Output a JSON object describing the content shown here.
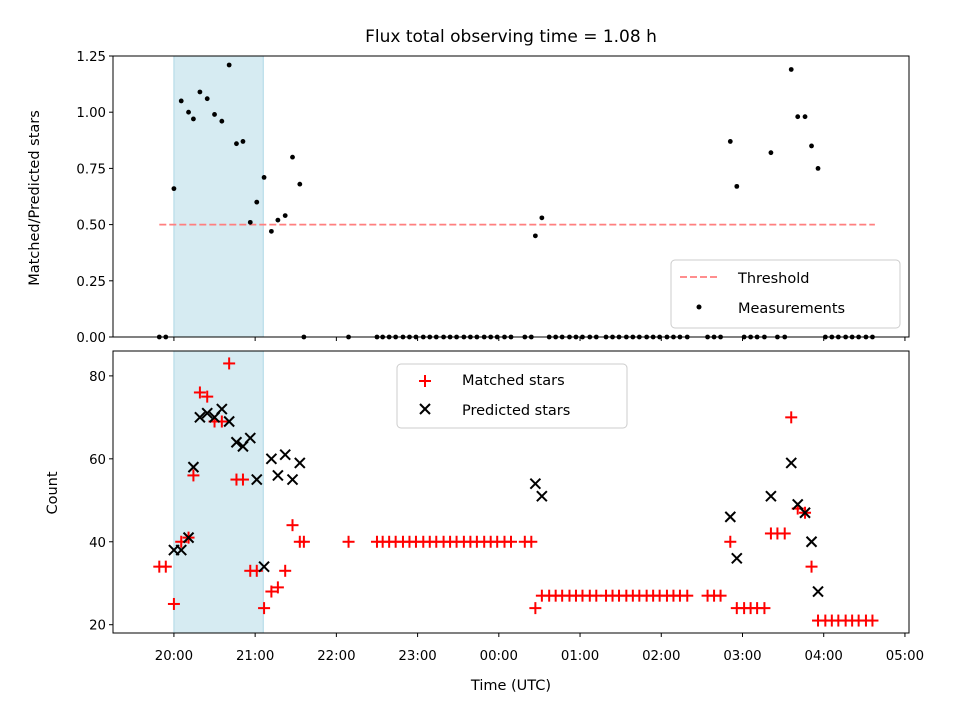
{
  "chart_data": [
    {
      "type": "scatter",
      "title": "Flux total observing time = 1.08 h",
      "xlabel": "",
      "ylabel": "Matched/Predicted stars",
      "x_unit": "hours_since_20:00_UTC",
      "xlim": [
        -0.75,
        9.05
      ],
      "ylim": [
        0,
        1.25
      ],
      "yticks": [
        0.0,
        0.25,
        0.5,
        0.75,
        1.0,
        1.25
      ],
      "ytick_labels": [
        "0.00",
        "0.25",
        "0.50",
        "0.75",
        "1.00",
        "1.25"
      ],
      "x_tick_values": [
        0,
        1,
        2,
        3,
        4,
        5,
        6,
        7,
        8,
        9
      ],
      "shaded_span": {
        "x": [
          0.0,
          1.1
        ],
        "color": "#add8e6"
      },
      "legend": {
        "placement": "lower-right"
      },
      "series": [
        {
          "name": "Threshold",
          "style": "dashed-line",
          "color": "#ff7f7f",
          "x": [
            -0.18,
            8.63
          ],
          "y": [
            0.5,
            0.5
          ]
        },
        {
          "name": "Measurements",
          "style": "dot",
          "color": "#000000",
          "x": [
            -0.18,
            -0.1,
            0.0,
            0.09,
            0.18,
            0.24,
            0.32,
            0.41,
            0.5,
            0.59,
            0.68,
            0.77,
            0.85,
            0.94,
            1.02,
            1.11,
            1.2,
            1.28,
            1.37,
            1.46,
            1.55,
            1.6,
            2.15,
            2.5,
            2.57,
            2.65,
            2.73,
            2.82,
            2.9,
            2.98,
            3.07,
            3.15,
            3.23,
            3.32,
            3.4,
            3.48,
            3.57,
            3.65,
            3.73,
            3.82,
            3.9,
            3.98,
            4.07,
            4.15,
            4.32,
            4.4,
            4.45,
            4.53,
            4.62,
            4.7,
            4.78,
            4.87,
            4.95,
            5.03,
            5.12,
            5.2,
            5.32,
            5.4,
            5.48,
            5.57,
            5.65,
            5.73,
            5.82,
            5.9,
            5.98,
            6.07,
            6.15,
            6.23,
            6.32,
            6.57,
            6.65,
            6.73,
            6.85,
            6.93,
            7.02,
            7.1,
            7.18,
            7.27,
            7.35,
            7.43,
            7.52,
            7.6,
            7.68,
            7.77,
            7.85,
            7.93,
            8.02,
            8.1,
            8.18,
            8.27,
            8.35,
            8.43,
            8.52,
            8.6
          ],
          "y": [
            0.0,
            0.0,
            0.66,
            1.05,
            1.0,
            0.97,
            1.09,
            1.06,
            0.99,
            0.96,
            1.21,
            0.86,
            0.87,
            0.51,
            0.6,
            0.71,
            0.47,
            0.52,
            0.54,
            0.8,
            0.68,
            0.0,
            0.0,
            0.0,
            0.0,
            0.0,
            0.0,
            0.0,
            0.0,
            0.0,
            0.0,
            0.0,
            0.0,
            0.0,
            0.0,
            0.0,
            0.0,
            0.0,
            0.0,
            0.0,
            0.0,
            0.0,
            0.0,
            0.0,
            0.0,
            0.0,
            0.45,
            0.53,
            0.0,
            0.0,
            0.0,
            0.0,
            0.0,
            0.0,
            0.0,
            0.0,
            0.0,
            0.0,
            0.0,
            0.0,
            0.0,
            0.0,
            0.0,
            0.0,
            0.0,
            0.0,
            0.0,
            0.0,
            0.0,
            0.0,
            0.0,
            0.0,
            0.87,
            0.67,
            0.0,
            0.0,
            0.0,
            0.0,
            0.82,
            0.0,
            0.0,
            1.19,
            0.98,
            0.98,
            0.85,
            0.75,
            0.0,
            0.0,
            0.0,
            0.0,
            0.0,
            0.0,
            0.0,
            0.0
          ]
        }
      ]
    },
    {
      "type": "scatter",
      "title": "",
      "xlabel": "Time (UTC)",
      "ylabel": "Count",
      "x_unit": "hours_since_20:00_UTC",
      "xlim": [
        -0.75,
        9.05
      ],
      "ylim": [
        18,
        86
      ],
      "yticks": [
        20,
        40,
        60,
        80
      ],
      "ytick_labels": [
        "20",
        "40",
        "60",
        "80"
      ],
      "x_tick_values": [
        0,
        1,
        2,
        3,
        4,
        5,
        6,
        7,
        8,
        9
      ],
      "x_tick_labels": [
        "20:00",
        "21:00",
        "22:00",
        "23:00",
        "00:00",
        "01:00",
        "02:00",
        "03:00",
        "04:00",
        "05:00"
      ],
      "shaded_span": {
        "x": [
          0.0,
          1.1
        ],
        "color": "#add8e6"
      },
      "legend": {
        "placement": "upper-center"
      },
      "series": [
        {
          "name": "Matched stars",
          "style": "plus",
          "color": "#ff0000",
          "x": [
            -0.18,
            -0.1,
            0.0,
            0.09,
            0.18,
            0.24,
            0.32,
            0.41,
            0.5,
            0.59,
            0.68,
            0.77,
            0.85,
            0.94,
            1.02,
            1.11,
            1.2,
            1.28,
            1.37,
            1.46,
            1.55,
            1.6,
            2.15,
            2.5,
            2.57,
            2.65,
            2.73,
            2.82,
            2.9,
            2.98,
            3.07,
            3.15,
            3.23,
            3.32,
            3.4,
            3.48,
            3.57,
            3.65,
            3.73,
            3.82,
            3.9,
            3.98,
            4.07,
            4.15,
            4.32,
            4.4,
            4.45,
            4.53,
            4.62,
            4.7,
            4.78,
            4.87,
            4.95,
            5.03,
            5.12,
            5.2,
            5.32,
            5.4,
            5.48,
            5.57,
            5.65,
            5.73,
            5.82,
            5.9,
            5.98,
            6.07,
            6.15,
            6.23,
            6.32,
            6.57,
            6.65,
            6.73,
            6.85,
            6.93,
            7.02,
            7.1,
            7.18,
            7.27,
            7.35,
            7.43,
            7.52,
            7.6,
            7.68,
            7.77,
            7.85,
            7.93,
            8.02,
            8.1,
            8.18,
            8.27,
            8.35,
            8.43,
            8.52,
            8.6
          ],
          "y": [
            34,
            34,
            25,
            40,
            41,
            56,
            76,
            75,
            69,
            69,
            83,
            55,
            55,
            33,
            33,
            24,
            28,
            29,
            33,
            44,
            40,
            40,
            40,
            40,
            40,
            40,
            40,
            40,
            40,
            40,
            40,
            40,
            40,
            40,
            40,
            40,
            40,
            40,
            40,
            40,
            40,
            40,
            40,
            40,
            40,
            40,
            24,
            27,
            27,
            27,
            27,
            27,
            27,
            27,
            27,
            27,
            27,
            27,
            27,
            27,
            27,
            27,
            27,
            27,
            27,
            27,
            27,
            27,
            27,
            27,
            27,
            27,
            40,
            24,
            24,
            24,
            24,
            24,
            42,
            42,
            42,
            70,
            48,
            47,
            34,
            21,
            21,
            21,
            21,
            21,
            21,
            21,
            21,
            21
          ]
        },
        {
          "name": "Predicted stars",
          "style": "x",
          "color": "#000000",
          "x": [
            0.0,
            0.09,
            0.18,
            0.24,
            0.32,
            0.41,
            0.5,
            0.59,
            0.68,
            0.77,
            0.85,
            0.94,
            1.02,
            1.11,
            1.2,
            1.28,
            1.37,
            1.46,
            1.55,
            4.45,
            4.53,
            6.85,
            6.93,
            7.35,
            7.6,
            7.68,
            7.77,
            7.85,
            7.93
          ],
          "y": [
            38,
            38,
            41,
            58,
            70,
            71,
            70,
            72,
            69,
            64,
            63,
            65,
            55,
            34,
            60,
            56,
            61,
            55,
            59,
            54,
            51,
            46,
            36,
            51,
            59,
            49,
            47,
            40,
            28
          ]
        }
      ]
    }
  ]
}
